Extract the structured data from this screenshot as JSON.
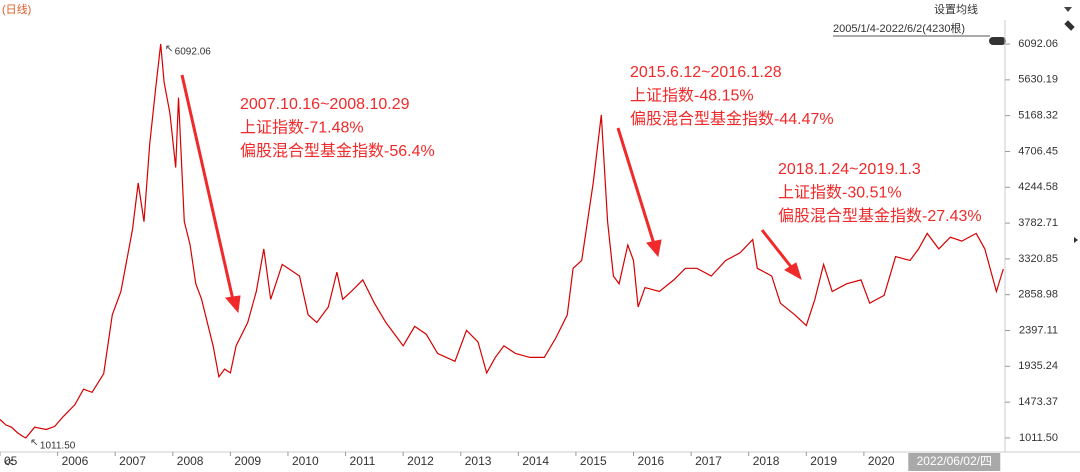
{
  "header": {
    "period": "(日线)",
    "ma_setting": "设置均线",
    "range_info": "2005/1/4-2022/6/2(4230根)"
  },
  "chart_data": {
    "type": "line",
    "color": "#d60000",
    "x": [
      2005.0,
      2005.1,
      2005.2,
      2005.3,
      2005.4,
      2005.45,
      2005.6,
      2005.8,
      2005.95,
      2006.1,
      2006.3,
      2006.45,
      2006.6,
      2006.8,
      2006.95,
      2007.1,
      2007.3,
      2007.4,
      2007.5,
      2007.6,
      2007.7,
      2007.79,
      2007.85,
      2007.95,
      2008.05,
      2008.1,
      2008.2,
      2008.3,
      2008.4,
      2008.5,
      2008.6,
      2008.7,
      2008.8,
      2008.9,
      2009.0,
      2009.1,
      2009.3,
      2009.45,
      2009.58,
      2009.7,
      2009.9,
      2010.0,
      2010.2,
      2010.35,
      2010.5,
      2010.7,
      2010.85,
      2010.95,
      2011.1,
      2011.3,
      2011.5,
      2011.7,
      2011.9,
      2012.0,
      2012.2,
      2012.4,
      2012.6,
      2012.9,
      2013.1,
      2013.3,
      2013.45,
      2013.6,
      2013.75,
      2013.95,
      2014.2,
      2014.45,
      2014.65,
      2014.85,
      2014.95,
      2015.1,
      2015.3,
      2015.44,
      2015.55,
      2015.65,
      2015.75,
      2015.9,
      2016.0,
      2016.08,
      2016.2,
      2016.45,
      2016.7,
      2016.9,
      2017.1,
      2017.35,
      2017.6,
      2017.85,
      2018.07,
      2018.15,
      2018.4,
      2018.55,
      2018.8,
      2019.0,
      2019.15,
      2019.3,
      2019.45,
      2019.7,
      2019.95,
      2020.1,
      2020.35,
      2020.55,
      2020.8,
      2020.95,
      2021.1,
      2021.3,
      2021.5,
      2021.7,
      2021.95,
      2022.1,
      2022.3,
      2022.42
    ],
    "values": [
      1250,
      1180,
      1150,
      1080,
      1030,
      1011.5,
      1150,
      1120,
      1160,
      1290,
      1440,
      1640,
      1600,
      1840,
      2600,
      2900,
      3700,
      4300,
      3800,
      4800,
      5500,
      6092.06,
      5600,
      5200,
      4500,
      5400,
      3800,
      3500,
      3000,
      2800,
      2500,
      2200,
      1800,
      1900,
      1850,
      2200,
      2500,
      2900,
      3450,
      2800,
      3250,
      3200,
      3100,
      2600,
      2500,
      2700,
      3150,
      2800,
      2900,
      3050,
      2750,
      2500,
      2300,
      2200,
      2450,
      2350,
      2100,
      2000,
      2400,
      2250,
      1850,
      2050,
      2200,
      2100,
      2050,
      2050,
      2300,
      2600,
      3200,
      3300,
      4300,
      5178,
      3800,
      3100,
      3000,
      3500,
      3300,
      2700,
      2950,
      2900,
      3050,
      3200,
      3200,
      3100,
      3300,
      3400,
      3570,
      3200,
      3100,
      2750,
      2600,
      2460,
      2800,
      3250,
      2900,
      3000,
      3050,
      2750,
      2850,
      3350,
      3300,
      3450,
      3650,
      3450,
      3600,
      3550,
      3650,
      3450,
      2900,
      3190
    ],
    "value_labels": [
      null,
      null,
      null,
      null,
      null,
      "1011.50",
      null,
      null,
      null,
      null,
      null,
      null,
      null,
      null,
      null,
      null,
      null,
      null,
      null,
      null,
      null,
      "6092.06",
      null,
      null,
      null,
      null,
      null,
      null,
      null,
      null,
      null,
      null,
      null,
      null,
      null,
      null,
      null,
      null,
      null,
      null,
      null,
      null,
      null,
      null,
      null,
      null,
      null,
      null,
      null,
      null,
      null,
      null,
      null,
      null,
      null,
      null,
      null,
      null,
      null,
      null,
      null,
      null,
      null,
      null,
      null,
      null,
      null,
      null,
      null,
      null,
      null,
      null,
      null,
      null,
      null,
      null,
      null,
      null,
      null,
      null,
      null,
      null,
      null,
      null,
      null,
      null,
      null,
      null,
      null,
      null,
      null,
      null,
      null,
      null,
      null,
      null,
      null,
      null,
      null,
      null,
      null,
      null,
      null,
      null,
      null,
      null,
      null,
      null,
      null,
      null
    ],
    "xlim": [
      2005.0,
      2022.45
    ],
    "xticks": [
      {
        "value": 2005,
        "label": "05"
      },
      2006,
      2007,
      2008,
      2009,
      2010,
      2011,
      2012,
      2013,
      2014,
      2015,
      2016,
      2017,
      2018,
      2019,
      2020,
      {
        "value": 2022.42,
        "label": "2022/06/02/四"
      }
    ],
    "ylim": [
      856,
      6402
    ],
    "yticks": [
      6092.06,
      5630.19,
      5168.32,
      4706.45,
      4244.58,
      3782.71,
      3320.85,
      2858.98,
      2397.11,
      1935.24,
      1473.37,
      {
        "value": 1011.5,
        "label": "1011.50"
      }
    ],
    "grid": false,
    "annotations": [
      [
        "2007.10.16~2008.10.29",
        "上证指数-71.48%",
        "偏股混合型基金指数-56.4%"
      ],
      [
        "2015.6.12~2016.1.28",
        "上证指数-48.15%",
        "偏股混合型基金指数-44.47%"
      ],
      [
        "2018.1.24~2019.1.3",
        "上证指数-30.51%",
        "偏股混合型基金指数-27.43%"
      ]
    ]
  }
}
